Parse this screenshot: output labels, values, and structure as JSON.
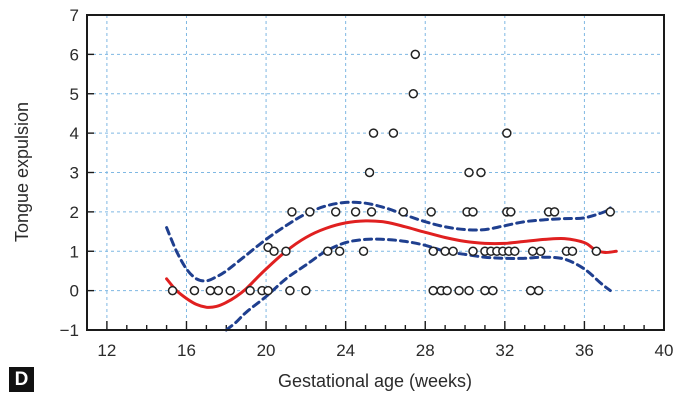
{
  "panel_letter": "D",
  "colors": {
    "frame": "#1a1a1a",
    "grid": "#7fb8e3",
    "fit_curve": "#e02020",
    "confidence_band": "#1f3f8f",
    "points": "#222222"
  },
  "chart_data": {
    "type": "scatter",
    "title": "",
    "xlabel": "Gestational age (weeks)",
    "ylabel": "Tongue expulsion",
    "xlim": [
      11,
      40
    ],
    "ylim": [
      -1,
      7
    ],
    "x_ticks": [
      12,
      16,
      20,
      24,
      28,
      32,
      36,
      40
    ],
    "y_ticks": [
      -1,
      0,
      1,
      2,
      3,
      4,
      5,
      6,
      7
    ],
    "x_minor_step": 1,
    "grid": "dashed at major ticks",
    "legend": "none",
    "series": [
      {
        "kind": "observations",
        "marker": "open-circle",
        "points": [
          [
            15.3,
            0
          ],
          [
            16.4,
            0
          ],
          [
            17.2,
            0
          ],
          [
            17.6,
            0
          ],
          [
            18.2,
            0
          ],
          [
            19.2,
            0
          ],
          [
            19.8,
            0
          ],
          [
            20.1,
            0
          ],
          [
            21.2,
            0
          ],
          [
            22.0,
            0
          ],
          [
            28.4,
            0
          ],
          [
            28.8,
            0
          ],
          [
            29.1,
            0
          ],
          [
            29.7,
            0
          ],
          [
            30.2,
            0
          ],
          [
            31.0,
            0
          ],
          [
            31.4,
            0
          ],
          [
            33.3,
            0
          ],
          [
            33.7,
            0
          ],
          [
            20.1,
            1.1
          ],
          [
            20.4,
            1
          ],
          [
            21.0,
            1
          ],
          [
            23.1,
            1
          ],
          [
            23.7,
            1
          ],
          [
            24.9,
            1
          ],
          [
            28.4,
            1
          ],
          [
            29.0,
            1
          ],
          [
            29.4,
            1
          ],
          [
            30.4,
            1
          ],
          [
            31.0,
            1
          ],
          [
            31.3,
            1
          ],
          [
            31.6,
            1
          ],
          [
            31.9,
            1
          ],
          [
            32.2,
            1
          ],
          [
            32.5,
            1
          ],
          [
            33.4,
            1
          ],
          [
            33.8,
            1
          ],
          [
            35.1,
            1
          ],
          [
            35.4,
            1
          ],
          [
            36.6,
            1
          ],
          [
            21.3,
            2
          ],
          [
            22.2,
            2
          ],
          [
            23.5,
            2
          ],
          [
            24.5,
            2
          ],
          [
            25.3,
            2
          ],
          [
            26.9,
            2
          ],
          [
            28.3,
            2
          ],
          [
            30.1,
            2
          ],
          [
            30.4,
            2
          ],
          [
            32.1,
            2
          ],
          [
            32.3,
            2
          ],
          [
            34.2,
            2
          ],
          [
            34.5,
            2
          ],
          [
            37.3,
            2
          ],
          [
            25.2,
            3
          ],
          [
            30.2,
            3
          ],
          [
            30.8,
            3
          ],
          [
            25.4,
            4
          ],
          [
            26.4,
            4
          ],
          [
            32.1,
            4
          ],
          [
            27.4,
            5
          ],
          [
            27.5,
            6
          ]
        ]
      },
      {
        "kind": "fitted-curve",
        "line": "solid",
        "points": [
          [
            15.0,
            0.3
          ],
          [
            15.5,
            0.0
          ],
          [
            16.0,
            -0.2
          ],
          [
            16.5,
            -0.35
          ],
          [
            17.0,
            -0.42
          ],
          [
            17.5,
            -0.4
          ],
          [
            18.0,
            -0.3
          ],
          [
            18.5,
            -0.15
          ],
          [
            19.0,
            0.05
          ],
          [
            19.5,
            0.3
          ],
          [
            20.0,
            0.55
          ],
          [
            21.0,
            1.0
          ],
          [
            22.0,
            1.35
          ],
          [
            23.0,
            1.58
          ],
          [
            24.0,
            1.72
          ],
          [
            25.0,
            1.77
          ],
          [
            26.0,
            1.74
          ],
          [
            27.0,
            1.62
          ],
          [
            28.0,
            1.48
          ],
          [
            29.0,
            1.35
          ],
          [
            30.0,
            1.25
          ],
          [
            31.0,
            1.2
          ],
          [
            32.0,
            1.2
          ],
          [
            33.0,
            1.25
          ],
          [
            34.0,
            1.3
          ],
          [
            35.0,
            1.32
          ],
          [
            36.0,
            1.22
          ],
          [
            36.5,
            1.05
          ],
          [
            37.0,
            0.97
          ],
          [
            37.6,
            1.0
          ]
        ]
      },
      {
        "kind": "upper-confidence-band",
        "line": "dashed",
        "points": [
          [
            15.0,
            1.6
          ],
          [
            15.5,
            1.0
          ],
          [
            16.0,
            0.55
          ],
          [
            16.5,
            0.3
          ],
          [
            17.0,
            0.25
          ],
          [
            17.5,
            0.35
          ],
          [
            18.0,
            0.5
          ],
          [
            19.0,
            0.9
          ],
          [
            20.0,
            1.3
          ],
          [
            21.0,
            1.65
          ],
          [
            22.0,
            1.95
          ],
          [
            23.0,
            2.15
          ],
          [
            24.0,
            2.24
          ],
          [
            25.0,
            2.22
          ],
          [
            26.0,
            2.1
          ],
          [
            27.0,
            1.92
          ],
          [
            28.0,
            1.75
          ],
          [
            29.0,
            1.62
          ],
          [
            30.0,
            1.55
          ],
          [
            31.0,
            1.55
          ],
          [
            32.0,
            1.65
          ],
          [
            33.0,
            1.75
          ],
          [
            34.0,
            1.8
          ],
          [
            35.0,
            1.83
          ],
          [
            36.0,
            1.85
          ],
          [
            37.0,
            2.0
          ],
          [
            37.3,
            2.1
          ]
        ]
      },
      {
        "kind": "lower-confidence-band",
        "line": "dashed",
        "points": [
          [
            18.0,
            -1.0
          ],
          [
            18.5,
            -0.8
          ],
          [
            19.0,
            -0.55
          ],
          [
            20.0,
            -0.15
          ],
          [
            21.0,
            0.3
          ],
          [
            22.0,
            0.65
          ],
          [
            23.0,
            1.0
          ],
          [
            24.0,
            1.22
          ],
          [
            25.0,
            1.3
          ],
          [
            26.0,
            1.3
          ],
          [
            27.0,
            1.25
          ],
          [
            28.0,
            1.15
          ],
          [
            29.0,
            1.0
          ],
          [
            30.0,
            0.92
          ],
          [
            31.0,
            0.85
          ],
          [
            32.0,
            0.82
          ],
          [
            33.0,
            0.82
          ],
          [
            34.0,
            0.85
          ],
          [
            35.0,
            0.8
          ],
          [
            36.0,
            0.55
          ],
          [
            36.8,
            0.2
          ],
          [
            37.3,
            0.0
          ]
        ]
      }
    ]
  }
}
